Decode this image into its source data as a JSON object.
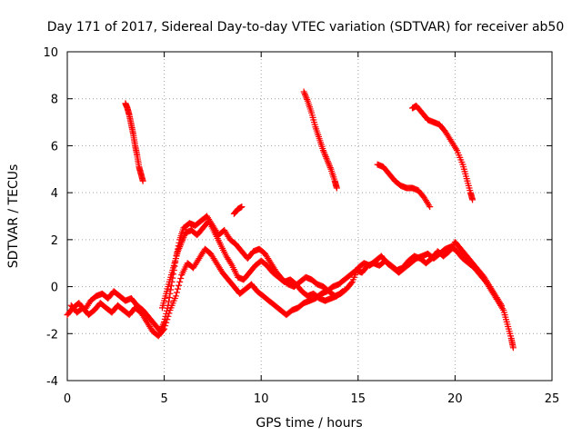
{
  "chart_data": {
    "type": "scatter",
    "title": "Day 171 of 2017, Sidereal Day-to-day VTEC variation (SDTVAR) for receiver ab50",
    "xlabel": "GPS time / hours",
    "ylabel": "SDTVAR / TECUs",
    "xlim": [
      0,
      25
    ],
    "ylim": [
      -4,
      10
    ],
    "xticks": [
      "0",
      "5",
      "10",
      "15",
      "20",
      "25"
    ],
    "yticks": [
      "-4",
      "-2",
      "0",
      "2",
      "4",
      "6",
      "8",
      "10"
    ],
    "grid": true,
    "marker": "+",
    "color": "#ff0000",
    "series": [
      {
        "name": "main-trace-a",
        "points": [
          [
            0.0,
            -1.2
          ],
          [
            0.3,
            -0.9
          ],
          [
            0.6,
            -0.7
          ],
          [
            0.9,
            -1.0
          ],
          [
            1.2,
            -0.6
          ],
          [
            1.5,
            -0.4
          ],
          [
            1.8,
            -0.3
          ],
          [
            2.1,
            -0.5
          ],
          [
            2.4,
            -0.2
          ],
          [
            2.7,
            -0.4
          ],
          [
            3.0,
            -0.6
          ],
          [
            3.3,
            -0.5
          ],
          [
            3.6,
            -0.8
          ],
          [
            3.9,
            -1.0
          ],
          [
            4.2,
            -1.3
          ],
          [
            4.5,
            -1.6
          ],
          [
            4.8,
            -1.9
          ],
          [
            5.0,
            -1.5
          ],
          [
            5.2,
            -0.8
          ],
          [
            5.4,
            0.2
          ],
          [
            5.6,
            1.2
          ],
          [
            5.8,
            2.0
          ],
          [
            6.0,
            2.5
          ],
          [
            6.3,
            2.7
          ],
          [
            6.6,
            2.6
          ],
          [
            6.9,
            2.8
          ],
          [
            7.2,
            3.0
          ],
          [
            7.5,
            2.6
          ],
          [
            7.8,
            2.2
          ],
          [
            8.1,
            2.4
          ],
          [
            8.4,
            2.0
          ],
          [
            8.7,
            1.8
          ],
          [
            9.0,
            1.5
          ],
          [
            9.3,
            1.2
          ],
          [
            9.6,
            1.5
          ],
          [
            9.9,
            1.6
          ],
          [
            10.2,
            1.4
          ],
          [
            10.5,
            1.0
          ],
          [
            10.8,
            0.6
          ],
          [
            11.1,
            0.3
          ],
          [
            11.4,
            0.1
          ],
          [
            11.7,
            0.0
          ],
          [
            12.0,
            0.2
          ],
          [
            12.3,
            0.4
          ],
          [
            12.6,
            0.3
          ],
          [
            12.9,
            0.1
          ],
          [
            13.2,
            0.0
          ],
          [
            13.5,
            -0.2
          ],
          [
            13.8,
            -0.4
          ],
          [
            14.1,
            -0.3
          ],
          [
            14.4,
            -0.1
          ],
          [
            14.7,
            0.2
          ],
          [
            15.0,
            0.8
          ],
          [
            15.3,
            1.0
          ],
          [
            15.6,
            0.9
          ],
          [
            15.9,
            1.1
          ],
          [
            16.2,
            1.3
          ],
          [
            16.5,
            1.0
          ],
          [
            16.8,
            0.8
          ],
          [
            17.1,
            0.6
          ],
          [
            17.4,
            0.8
          ],
          [
            17.7,
            1.0
          ],
          [
            18.0,
            1.2
          ],
          [
            18.3,
            1.3
          ],
          [
            18.6,
            1.4
          ],
          [
            18.9,
            1.2
          ],
          [
            19.2,
            1.4
          ],
          [
            19.5,
            1.6
          ],
          [
            19.8,
            1.7
          ],
          [
            20.1,
            1.5
          ],
          [
            20.4,
            1.2
          ],
          [
            20.7,
            1.0
          ],
          [
            21.0,
            0.8
          ],
          [
            21.3,
            0.5
          ],
          [
            21.6,
            0.2
          ],
          [
            21.9,
            -0.2
          ],
          [
            22.2,
            -0.6
          ],
          [
            22.5,
            -1.0
          ],
          [
            22.7,
            -1.6
          ],
          [
            22.9,
            -2.2
          ],
          [
            23.0,
            -2.6
          ]
        ]
      },
      {
        "name": "main-trace-b",
        "points": [
          [
            0.2,
            -0.8
          ],
          [
            0.5,
            -1.1
          ],
          [
            0.8,
            -0.9
          ],
          [
            1.1,
            -1.2
          ],
          [
            1.4,
            -1.0
          ],
          [
            1.7,
            -0.7
          ],
          [
            2.0,
            -0.9
          ],
          [
            2.3,
            -1.1
          ],
          [
            2.6,
            -0.8
          ],
          [
            2.9,
            -1.0
          ],
          [
            3.2,
            -1.2
          ],
          [
            3.5,
            -0.9
          ],
          [
            3.8,
            -1.1
          ],
          [
            4.1,
            -1.5
          ],
          [
            4.4,
            -1.9
          ],
          [
            4.7,
            -2.1
          ],
          [
            5.0,
            -1.8
          ],
          [
            5.3,
            -1.0
          ],
          [
            5.6,
            -0.4
          ],
          [
            5.9,
            0.5
          ],
          [
            6.2,
            1.0
          ],
          [
            6.5,
            0.8
          ],
          [
            6.8,
            1.2
          ],
          [
            7.1,
            1.6
          ],
          [
            7.4,
            1.4
          ],
          [
            7.7,
            1.0
          ],
          [
            8.0,
            0.6
          ],
          [
            8.3,
            0.3
          ],
          [
            8.6,
            0.0
          ],
          [
            8.9,
            -0.3
          ],
          [
            9.2,
            -0.1
          ],
          [
            9.5,
            0.1
          ],
          [
            9.8,
            -0.2
          ],
          [
            10.1,
            -0.4
          ],
          [
            10.4,
            -0.6
          ],
          [
            10.7,
            -0.8
          ],
          [
            11.0,
            -1.0
          ],
          [
            11.3,
            -1.2
          ],
          [
            11.6,
            -1.0
          ],
          [
            11.9,
            -0.9
          ],
          [
            12.2,
            -0.7
          ],
          [
            12.5,
            -0.6
          ],
          [
            12.8,
            -0.5
          ],
          [
            13.1,
            -0.3
          ],
          [
            13.4,
            -0.2
          ],
          [
            13.7,
            0.0
          ],
          [
            14.0,
            0.1
          ],
          [
            14.3,
            0.3
          ],
          [
            14.6,
            0.5
          ],
          [
            14.9,
            0.7
          ],
          [
            15.2,
            0.6
          ],
          [
            15.5,
            0.9
          ],
          [
            15.8,
            1.0
          ],
          [
            16.1,
            0.9
          ],
          [
            16.4,
            1.1
          ],
          [
            16.7,
            0.9
          ],
          [
            17.0,
            0.7
          ],
          [
            17.3,
            0.8
          ],
          [
            17.6,
            1.1
          ],
          [
            17.9,
            1.3
          ],
          [
            18.2,
            1.2
          ],
          [
            18.5,
            1.0
          ],
          [
            18.8,
            1.2
          ],
          [
            19.1,
            1.5
          ],
          [
            19.4,
            1.3
          ],
          [
            19.7,
            1.5
          ],
          [
            20.0,
            1.9
          ],
          [
            20.3,
            1.6
          ],
          [
            20.6,
            1.3
          ],
          [
            20.9,
            1.0
          ],
          [
            21.2,
            0.7
          ],
          [
            21.5,
            0.4
          ],
          [
            21.8,
            0.0
          ],
          [
            22.1,
            -0.4
          ],
          [
            22.4,
            -0.8
          ]
        ]
      },
      {
        "name": "main-trace-c",
        "points": [
          [
            4.9,
            -0.9
          ],
          [
            5.1,
            -0.3
          ],
          [
            5.3,
            0.3
          ],
          [
            5.5,
            0.9
          ],
          [
            5.7,
            1.5
          ],
          [
            5.9,
            1.9
          ],
          [
            6.1,
            2.3
          ],
          [
            6.4,
            2.4
          ],
          [
            6.7,
            2.2
          ],
          [
            7.0,
            2.5
          ],
          [
            7.3,
            2.8
          ],
          [
            7.6,
            2.3
          ],
          [
            7.9,
            1.8
          ],
          [
            8.2,
            1.3
          ],
          [
            8.5,
            0.9
          ],
          [
            8.8,
            0.4
          ],
          [
            9.1,
            0.3
          ],
          [
            9.4,
            0.6
          ],
          [
            9.7,
            0.9
          ],
          [
            10.0,
            1.1
          ],
          [
            10.3,
            0.9
          ],
          [
            10.6,
            0.6
          ],
          [
            10.9,
            0.4
          ],
          [
            11.2,
            0.2
          ],
          [
            11.5,
            0.3
          ],
          [
            11.8,
            0.1
          ],
          [
            12.1,
            -0.2
          ],
          [
            12.4,
            -0.4
          ],
          [
            12.7,
            -0.3
          ],
          [
            13.0,
            -0.5
          ],
          [
            13.3,
            -0.6
          ],
          [
            13.6,
            -0.5
          ],
          [
            13.9,
            -0.4
          ],
          [
            14.2,
            -0.2
          ]
        ]
      },
      {
        "name": "arc-1",
        "points": [
          [
            3.0,
            7.8
          ],
          [
            3.1,
            7.6
          ],
          [
            3.2,
            7.3
          ],
          [
            3.3,
            6.9
          ],
          [
            3.4,
            6.5
          ],
          [
            3.5,
            6.0
          ],
          [
            3.6,
            5.6
          ],
          [
            3.7,
            5.1
          ],
          [
            3.8,
            4.8
          ],
          [
            3.9,
            4.5
          ]
        ]
      },
      {
        "name": "arc-2",
        "points": [
          [
            8.6,
            3.1
          ],
          [
            8.8,
            3.3
          ],
          [
            9.0,
            3.4
          ]
        ]
      },
      {
        "name": "arc-3",
        "points": [
          [
            12.2,
            8.3
          ],
          [
            12.4,
            7.9
          ],
          [
            12.6,
            7.4
          ],
          [
            12.8,
            6.8
          ],
          [
            13.0,
            6.3
          ],
          [
            13.2,
            5.8
          ],
          [
            13.4,
            5.4
          ],
          [
            13.6,
            5.0
          ],
          [
            13.8,
            4.5
          ],
          [
            13.9,
            4.2
          ]
        ]
      },
      {
        "name": "arc-4",
        "points": [
          [
            16.0,
            5.2
          ],
          [
            16.3,
            5.1
          ],
          [
            16.6,
            4.8
          ],
          [
            16.9,
            4.5
          ],
          [
            17.2,
            4.3
          ],
          [
            17.5,
            4.2
          ],
          [
            17.8,
            4.2
          ],
          [
            18.1,
            4.1
          ],
          [
            18.4,
            3.8
          ],
          [
            18.7,
            3.4
          ]
        ]
      },
      {
        "name": "arc-5",
        "points": [
          [
            17.8,
            7.6
          ],
          [
            18.0,
            7.7
          ],
          [
            18.3,
            7.4
          ],
          [
            18.6,
            7.1
          ],
          [
            18.9,
            7.0
          ],
          [
            19.2,
            6.9
          ],
          [
            19.5,
            6.6
          ],
          [
            19.8,
            6.2
          ],
          [
            20.1,
            5.8
          ],
          [
            20.4,
            5.2
          ],
          [
            20.6,
            4.6
          ],
          [
            20.8,
            4.0
          ],
          [
            20.9,
            3.7
          ]
        ]
      }
    ]
  }
}
